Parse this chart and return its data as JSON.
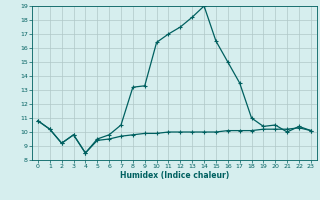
{
  "xlabel": "Humidex (Indice chaleur)",
  "xlim": [
    -0.5,
    23.5
  ],
  "ylim": [
    8,
    19
  ],
  "yticks": [
    8,
    9,
    10,
    11,
    12,
    13,
    14,
    15,
    16,
    17,
    18,
    19
  ],
  "xticks": [
    0,
    1,
    2,
    3,
    4,
    5,
    6,
    7,
    8,
    9,
    10,
    11,
    12,
    13,
    14,
    15,
    16,
    17,
    18,
    19,
    20,
    21,
    22,
    23
  ],
  "background_color": "#d6eeee",
  "grid_color": "#b0c8c8",
  "line_color": "#006060",
  "line1_x": [
    0,
    1,
    2,
    3,
    4,
    5,
    6,
    7,
    8,
    9,
    10,
    11,
    12,
    13,
    14,
    15,
    16,
    17,
    18,
    19,
    20,
    21,
    22,
    23
  ],
  "line1_y": [
    10.8,
    10.2,
    9.2,
    9.8,
    8.5,
    9.5,
    9.8,
    10.5,
    13.2,
    13.3,
    16.4,
    17.0,
    17.5,
    18.2,
    19.0,
    16.5,
    15.0,
    13.5,
    11.0,
    10.4,
    10.5,
    10.0,
    10.4,
    10.1
  ],
  "line2_x": [
    0,
    1,
    2,
    3,
    4,
    5,
    6,
    7,
    8,
    9,
    10,
    11,
    12,
    13,
    14,
    15,
    16,
    17,
    18,
    19,
    20,
    21,
    22,
    23
  ],
  "line2_y": [
    10.8,
    10.2,
    9.2,
    9.8,
    8.5,
    9.4,
    9.5,
    9.7,
    9.8,
    9.9,
    9.9,
    10.0,
    10.0,
    10.0,
    10.0,
    10.0,
    10.1,
    10.1,
    10.1,
    10.2,
    10.2,
    10.2,
    10.3,
    10.1
  ]
}
